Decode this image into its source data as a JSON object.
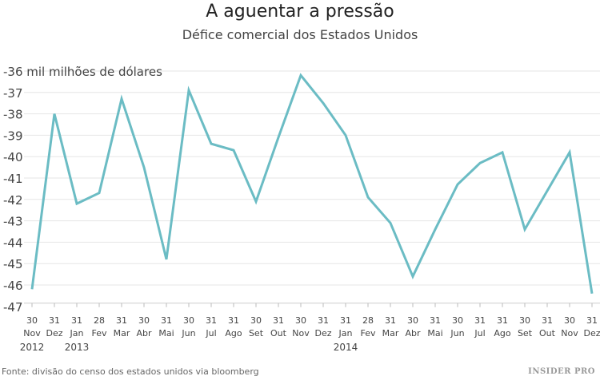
{
  "chart_data": {
    "type": "line",
    "title": "A aguentar a pressão",
    "subtitle": "Défice comercial dos Estados Unidos",
    "ylabel": "mil milhões de dólares",
    "ylim": [
      -47,
      -36
    ],
    "yticks": [
      -36,
      -37,
      -38,
      -39,
      -40,
      -41,
      -42,
      -43,
      -44,
      -45,
      -46,
      -47
    ],
    "grid": true,
    "line_color": "#6bbcc4",
    "x_days": [
      "30",
      "31",
      "31",
      "28",
      "31",
      "30",
      "31",
      "30",
      "31",
      "31",
      "30",
      "31",
      "30",
      "31",
      "31",
      "28",
      "31",
      "30",
      "31",
      "30",
      "31",
      "31",
      "30",
      "31",
      "30",
      "31"
    ],
    "x_months": [
      "Nov",
      "Dez",
      "Jan",
      "Fev",
      "Mar",
      "Abr",
      "Mai",
      "Jun",
      "Jul",
      "Ago",
      "Set",
      "Out",
      "Nov",
      "Dez",
      "Jan",
      "Fev",
      "Mar",
      "Abr",
      "Mai",
      "Jun",
      "Jul",
      "Ago",
      "Set",
      "Out",
      "Nov",
      "Dez"
    ],
    "x_years": [
      {
        "index": 0,
        "label": "2012"
      },
      {
        "index": 2,
        "label": "2013"
      },
      {
        "index": 14,
        "label": "2014"
      }
    ],
    "values": [
      -46.2,
      -38.0,
      -42.2,
      -41.7,
      -37.3,
      -40.5,
      -44.8,
      -36.9,
      -39.4,
      -39.7,
      -42.1,
      -39.1,
      -36.2,
      -37.5,
      -39.0,
      -41.9,
      -43.1,
      -45.6,
      -43.4,
      -41.3,
      -40.3,
      -39.8,
      -43.4,
      -41.6,
      -39.8,
      -46.4
    ]
  },
  "source": "Fonte: divisão do censo dos estados unidos via bloomberg",
  "logo": "INSIDER PRO"
}
